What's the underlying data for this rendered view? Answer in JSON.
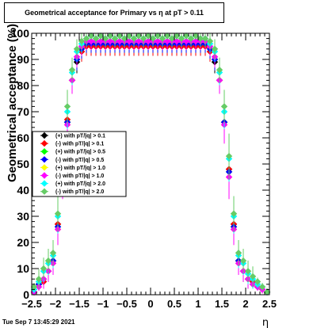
{
  "page": {
    "footer_timestamp": "Tue Sep  7 13:45:29 2021"
  },
  "chart_data": {
    "type": "scatter",
    "title": "Geometrical acceptance for Primary vs   η at pT > 0.11",
    "xlabel": "η",
    "ylabel": "Geometrical acceptance (%)",
    "xlim": [
      -2.5,
      2.5
    ],
    "ylim": [
      0,
      100
    ],
    "x_ticks": [
      "−2.5",
      "−2",
      "−1.5",
      "−1",
      "−0.5",
      "0",
      "0.5",
      "1",
      "1.5",
      "2",
      "2.5"
    ],
    "y_ticks": [
      "0",
      "10",
      "20",
      "30",
      "40",
      "50",
      "60",
      "70",
      "80",
      "90",
      "100"
    ],
    "grid": false,
    "legend_position": "left-middle",
    "x": [
      -2.45,
      -2.35,
      -2.25,
      -2.15,
      -2.05,
      -1.95,
      -1.85,
      -1.75,
      -1.65,
      -1.55,
      -1.45,
      -1.35,
      -1.25,
      -1.15,
      -1.05,
      -0.95,
      -0.85,
      -0.75,
      -0.65,
      -0.55,
      -0.45,
      -0.35,
      -0.25,
      -0.15,
      -0.05,
      0.05,
      0.15,
      0.25,
      0.35,
      0.45,
      0.55,
      0.65,
      0.75,
      0.85,
      0.95,
      1.05,
      1.15,
      1.25,
      1.35,
      1.45,
      1.55,
      1.65,
      1.75,
      1.85,
      1.95,
      2.05,
      2.15,
      2.25,
      2.35,
      2.45
    ],
    "series": [
      {
        "name": "(+) with pT/|q| > 0.1",
        "color": "#000000",
        "values": [
          1,
          4,
          5,
          9,
          13,
          27,
          48,
          66,
          82,
          89,
          93,
          95,
          95,
          95,
          95,
          95,
          95,
          95,
          95,
          95,
          95,
          95,
          95,
          95,
          95,
          95,
          95,
          95,
          95,
          95,
          95,
          95,
          95,
          95,
          95,
          95,
          95,
          93,
          89,
          82,
          66,
          48,
          27,
          13,
          9,
          6,
          5,
          3,
          2,
          1
        ]
      },
      {
        "name": "(-) with pT/|q| > 0.1",
        "color": "#ff0000",
        "values": [
          1,
          4,
          5,
          9,
          13,
          27,
          48,
          67,
          82,
          90,
          93,
          95,
          95,
          95,
          95,
          95,
          95,
          95,
          95,
          95,
          95,
          95,
          95,
          95,
          95,
          95,
          95,
          95,
          95,
          95,
          95,
          95,
          95,
          95,
          95,
          95,
          95,
          93,
          90,
          82,
          66,
          48,
          27,
          13,
          9,
          6,
          5,
          3,
          2,
          1
        ]
      },
      {
        "name": "(+) with pT/|q| > 0.5",
        "color": "#00ff00",
        "values": [
          1,
          4,
          6,
          9,
          13,
          26,
          47,
          66,
          82,
          90,
          94,
          96,
          96,
          96,
          96,
          96,
          96,
          96,
          96,
          96,
          96,
          96,
          96,
          96,
          96,
          96,
          96,
          96,
          96,
          96,
          96,
          96,
          96,
          96,
          96,
          96,
          96,
          94,
          90,
          82,
          66,
          47,
          26,
          13,
          9,
          6,
          4,
          3,
          2,
          1
        ]
      },
      {
        "name": "(-) with pT/|q| > 0.5",
        "color": "#0000ff",
        "values": [
          1,
          4,
          6,
          9,
          13,
          26,
          47,
          66,
          82,
          90,
          94,
          96,
          96,
          96,
          96,
          96,
          96,
          96,
          96,
          96,
          96,
          96,
          96,
          96,
          96,
          96,
          96,
          96,
          96,
          96,
          96,
          96,
          96,
          96,
          96,
          96,
          96,
          94,
          90,
          82,
          66,
          47,
          26,
          13,
          9,
          6,
          4,
          3,
          2,
          1
        ]
      },
      {
        "name": "(+) with pT/|q| > 1.0",
        "color": "#ffff00",
        "values": [
          1,
          3,
          6,
          9,
          12,
          25,
          45,
          65,
          82,
          91,
          95,
          97,
          97,
          97,
          97,
          97,
          97,
          97,
          97,
          97,
          97,
          97,
          97,
          97,
          97,
          97,
          97,
          97,
          97,
          97,
          97,
          97,
          97,
          97,
          97,
          97,
          97,
          95,
          91,
          82,
          65,
          45,
          25,
          12,
          9,
          6,
          4,
          3,
          2,
          1
        ]
      },
      {
        "name": "(-) with pT/|q| > 1.0",
        "color": "#ff00ff",
        "values": [
          1,
          3,
          6,
          9,
          12,
          25,
          45,
          65,
          82,
          91,
          95,
          97,
          97,
          97,
          97,
          97,
          97,
          97,
          97,
          97,
          97,
          97,
          97,
          97,
          97,
          97,
          97,
          97,
          97,
          97,
          97,
          97,
          97,
          97,
          97,
          97,
          97,
          95,
          91,
          82,
          65,
          45,
          25,
          12,
          9,
          6,
          4,
          3,
          2,
          1
        ]
      },
      {
        "name": "(+) with pT/|q| > 2.0",
        "color": "#00ffff",
        "values": [
          2,
          5,
          9,
          12,
          15,
          30,
          52,
          70,
          85,
          93,
          96,
          98,
          99,
          98,
          99,
          98,
          99,
          98,
          99,
          98,
          99,
          98,
          99,
          98,
          99,
          98,
          99,
          98,
          99,
          98,
          99,
          98,
          99,
          98,
          99,
          98,
          98,
          96,
          93,
          85,
          70,
          52,
          30,
          15,
          12,
          8,
          6,
          4,
          3,
          1
        ]
      },
      {
        "name": "(-) with pT/|q| > 2.0",
        "color": "#66cc66",
        "values": [
          3,
          6,
          10,
          13,
          16,
          31,
          53,
          72,
          86,
          94,
          97,
          98,
          99,
          98,
          99,
          98,
          99,
          98,
          99,
          98,
          99,
          98,
          99,
          98,
          99,
          98,
          99,
          98,
          99,
          98,
          99,
          98,
          99,
          98,
          99,
          98,
          98,
          97,
          94,
          86,
          72,
          53,
          31,
          16,
          13,
          9,
          7,
          5,
          3,
          1
        ]
      }
    ]
  }
}
